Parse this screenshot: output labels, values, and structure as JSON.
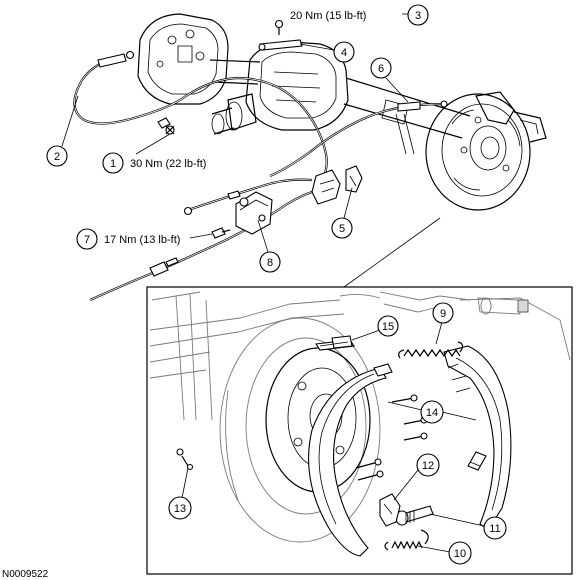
{
  "figure_id": "N0009522",
  "callouts": [
    {
      "number": "1",
      "torque": "30 Nm (22 lb-ft)"
    },
    {
      "number": "2",
      "torque": ""
    },
    {
      "number": "3",
      "torque": "20 Nm (15 lb-ft)"
    },
    {
      "number": "4",
      "torque": ""
    },
    {
      "number": "5",
      "torque": ""
    },
    {
      "number": "6",
      "torque": ""
    },
    {
      "number": "7",
      "torque": "17 Nm (13 lb-ft)"
    },
    {
      "number": "8",
      "torque": ""
    },
    {
      "number": "9",
      "torque": ""
    },
    {
      "number": "10",
      "torque": ""
    },
    {
      "number": "11",
      "torque": ""
    },
    {
      "number": "12",
      "torque": ""
    },
    {
      "number": "13",
      "torque": ""
    },
    {
      "number": "14",
      "torque": ""
    },
    {
      "number": "15",
      "torque": ""
    }
  ],
  "icons": [
    "parking-brake-cable-icon",
    "brake-shoe-icon",
    "return-spring-icon",
    "adjuster-icon",
    "bolt-icon"
  ]
}
